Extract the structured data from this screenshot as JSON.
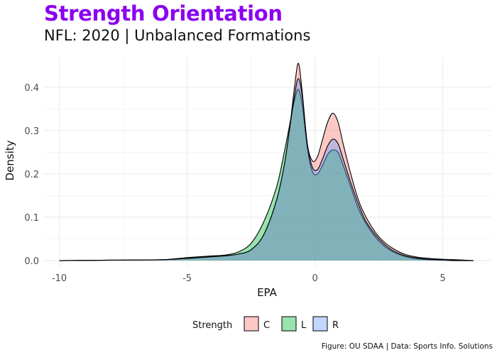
{
  "header": {
    "title": "Strength Orientation",
    "subtitle": "NFL: 2020 | Unbalanced Formations"
  },
  "caption": "Figure: OU SDAA | Data: Sports Info. Solutions",
  "colors": {
    "title": "#8a00f0",
    "C": "#f8766d",
    "L": "#00ba38",
    "R": "#619cff",
    "grid": "#ebebeb"
  },
  "chart_data": {
    "type": "area",
    "title": "Strength Orientation",
    "subtitle": "NFL: 2020 | Unbalanced Formations",
    "xlabel": "EPA",
    "ylabel": "Density",
    "xlim": [
      -10.6,
      6.9
    ],
    "ylim": [
      -0.013,
      0.47
    ],
    "x_ticks": [
      -10,
      -5,
      0,
      5
    ],
    "x_tick_labels": [
      "-10",
      "-5",
      "0",
      "5"
    ],
    "y_ticks": [
      0.0,
      0.1,
      0.2,
      0.3,
      0.4
    ],
    "y_tick_labels": [
      "0.0",
      "0.1",
      "0.2",
      "0.3",
      "0.4"
    ],
    "grid": true,
    "legend": {
      "title": "Strength",
      "position": "bottom",
      "entries": [
        "C",
        "L",
        "R"
      ]
    },
    "series": [
      {
        "name": "C",
        "x": [
          -10,
          -8,
          -6,
          -5,
          -4.5,
          -4,
          -3.5,
          -3,
          -2.5,
          -2,
          -1.5,
          -1.2,
          -1.0,
          -0.8,
          -0.65,
          -0.5,
          -0.3,
          -0.1,
          0.1,
          0.3,
          0.5,
          0.7,
          0.9,
          1.1,
          1.4,
          1.7,
          2.0,
          2.5,
          3.0,
          3.5,
          4.0,
          4.5,
          5.0,
          5.5,
          6.2
        ],
        "y": [
          0,
          0.001,
          0.002,
          0.006,
          0.008,
          0.01,
          0.012,
          0.015,
          0.025,
          0.06,
          0.14,
          0.22,
          0.3,
          0.4,
          0.455,
          0.39,
          0.27,
          0.23,
          0.24,
          0.28,
          0.32,
          0.34,
          0.32,
          0.27,
          0.2,
          0.14,
          0.1,
          0.055,
          0.03,
          0.015,
          0.008,
          0.005,
          0.003,
          0.002,
          0
        ]
      },
      {
        "name": "L",
        "x": [
          -10,
          -8,
          -6,
          -5,
          -4.5,
          -4,
          -3.5,
          -3,
          -2.5,
          -2,
          -1.5,
          -1.2,
          -1.0,
          -0.8,
          -0.65,
          -0.5,
          -0.3,
          -0.1,
          0.1,
          0.3,
          0.5,
          0.7,
          0.9,
          1.1,
          1.4,
          1.7,
          2.0,
          2.5,
          3.0,
          3.5,
          4.0,
          4.5,
          5.0,
          5.5,
          6.2
        ],
        "y": [
          0,
          0.001,
          0.002,
          0.007,
          0.009,
          0.011,
          0.013,
          0.02,
          0.04,
          0.09,
          0.17,
          0.25,
          0.31,
          0.37,
          0.395,
          0.36,
          0.26,
          0.205,
          0.2,
          0.22,
          0.245,
          0.255,
          0.25,
          0.22,
          0.17,
          0.12,
          0.085,
          0.045,
          0.022,
          0.01,
          0.004,
          0.002,
          0.001,
          0,
          0
        ]
      },
      {
        "name": "R",
        "x": [
          -10,
          -8,
          -6,
          -5,
          -4.5,
          -4,
          -3.5,
          -3,
          -2.5,
          -2,
          -1.5,
          -1.2,
          -1.0,
          -0.8,
          -0.65,
          -0.5,
          -0.3,
          -0.1,
          0.1,
          0.3,
          0.5,
          0.7,
          0.9,
          1.1,
          1.4,
          1.7,
          2.0,
          2.5,
          3.0,
          3.5,
          4.0,
          4.5,
          5.0,
          5.5,
          6.2
        ],
        "y": [
          0,
          0.001,
          0.002,
          0.005,
          0.007,
          0.009,
          0.011,
          0.015,
          0.025,
          0.06,
          0.14,
          0.22,
          0.3,
          0.38,
          0.42,
          0.38,
          0.27,
          0.215,
          0.21,
          0.235,
          0.265,
          0.28,
          0.27,
          0.235,
          0.18,
          0.13,
          0.09,
          0.05,
          0.025,
          0.012,
          0.006,
          0.003,
          0.002,
          0.001,
          0
        ]
      }
    ]
  }
}
